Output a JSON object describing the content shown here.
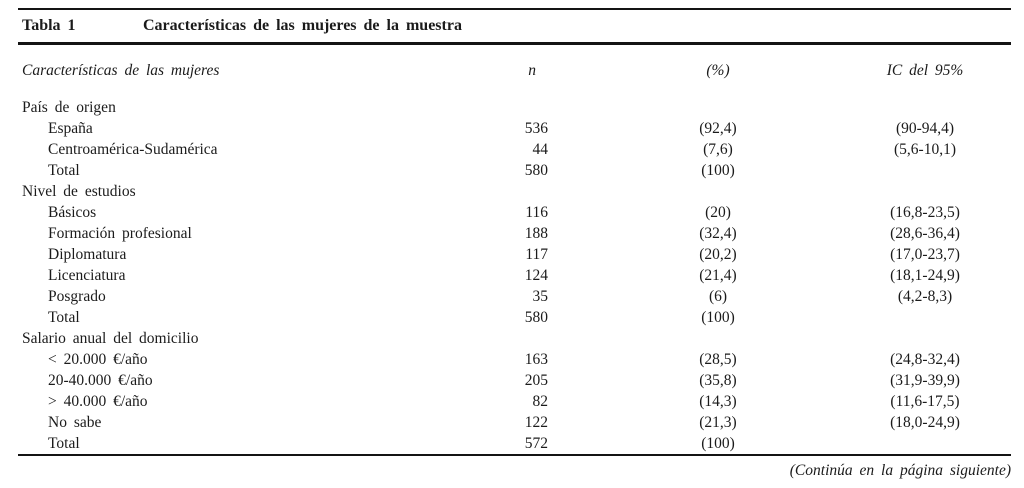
{
  "table": {
    "label": "Tabla 1",
    "title": "Características de las mujeres de la muestra",
    "columns": [
      "Características de las mujeres",
      "n",
      "(%)",
      "IC del 95%"
    ],
    "sections": [
      {
        "header": "País de origen",
        "rows": [
          {
            "label": "España",
            "n": "536",
            "pct": "(92,4)",
            "ic": "(90-94,4)"
          },
          {
            "label": "Centroamérica-Sudamérica",
            "n": "44",
            "pct": "(7,6)",
            "ic": "(5,6-10,1)"
          },
          {
            "label": "Total",
            "n": "580",
            "pct": "(100)",
            "ic": ""
          }
        ]
      },
      {
        "header": "Nivel de estudios",
        "rows": [
          {
            "label": "Básicos",
            "n": "116",
            "pct": "(20)",
            "ic": "(16,8-23,5)"
          },
          {
            "label": "Formación profesional",
            "n": "188",
            "pct": "(32,4)",
            "ic": "(28,6-36,4)"
          },
          {
            "label": "Diplomatura",
            "n": "117",
            "pct": "(20,2)",
            "ic": "(17,0-23,7)"
          },
          {
            "label": "Licenciatura",
            "n": "124",
            "pct": "(21,4)",
            "ic": "(18,1-24,9)"
          },
          {
            "label": "Posgrado",
            "n": "35",
            "pct": "(6)",
            "ic": "(4,2-8,3)"
          },
          {
            "label": "Total",
            "n": "580",
            "pct": "(100)",
            "ic": ""
          }
        ]
      },
      {
        "header": "Salario anual del domicilio",
        "rows": [
          {
            "label": "< 20.000 €/año",
            "n": "163",
            "pct": "(28,5)",
            "ic": "(24,8-32,4)"
          },
          {
            "label": "20-40.000 €/año",
            "n": "205",
            "pct": "(35,8)",
            "ic": "(31,9-39,9)"
          },
          {
            "label": "> 40.000 €/año",
            "n": "82",
            "pct": "(14,3)",
            "ic": "(11,6-17,5)"
          },
          {
            "label": "No sabe",
            "n": "122",
            "pct": "(21,3)",
            "ic": "(18,0-24,9)"
          },
          {
            "label": "Total",
            "n": "572",
            "pct": "(100)",
            "ic": ""
          }
        ]
      }
    ],
    "footer": "(Continúa en la página siguiente)"
  },
  "colors": {
    "text": "#1b1b1b",
    "rule": "#141414",
    "background": "#ffffff"
  }
}
